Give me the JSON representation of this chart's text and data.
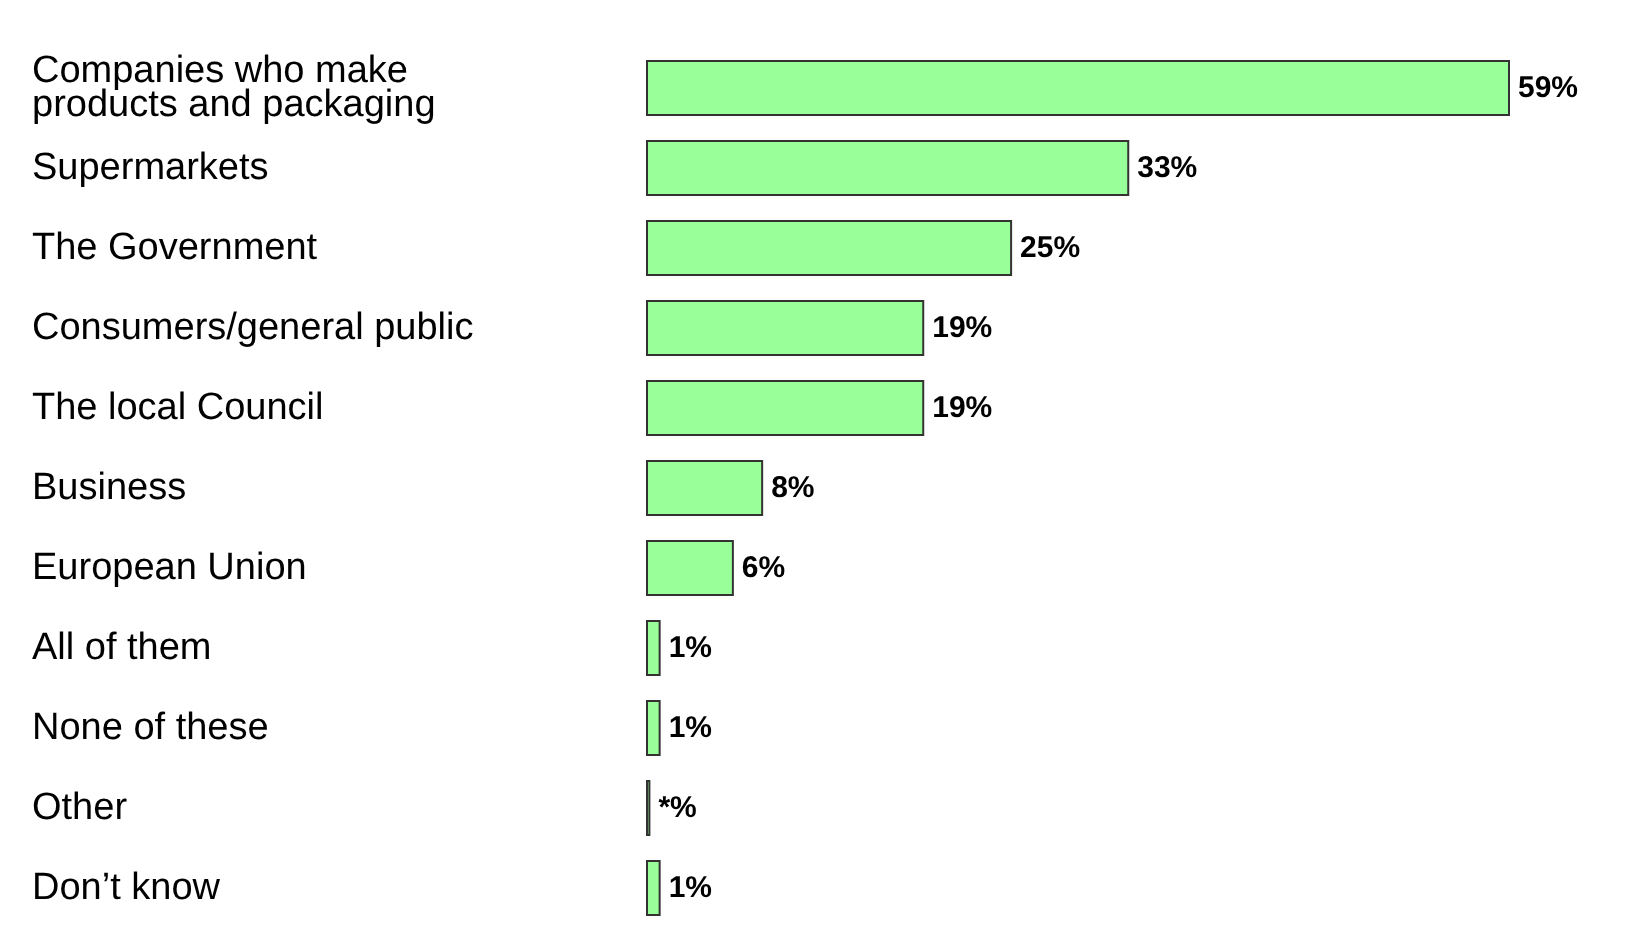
{
  "chart_data": {
    "type": "bar",
    "orientation": "horizontal",
    "categories": [
      "Companies who make products and packaging",
      "Supermarkets",
      "The Government",
      "Consumers/general public",
      "The local Council",
      "Business",
      "European Union",
      "All of them",
      "None of these",
      "Other",
      "Don’t know"
    ],
    "values": [
      59,
      33,
      25,
      19,
      19,
      8,
      6,
      1,
      1,
      0.3,
      1
    ],
    "value_labels": [
      "59%",
      "33%",
      "25%",
      "19%",
      "19%",
      "8%",
      "6%",
      "1%",
      "1%",
      "*%",
      "1%"
    ],
    "color": "#99ff99"
  }
}
